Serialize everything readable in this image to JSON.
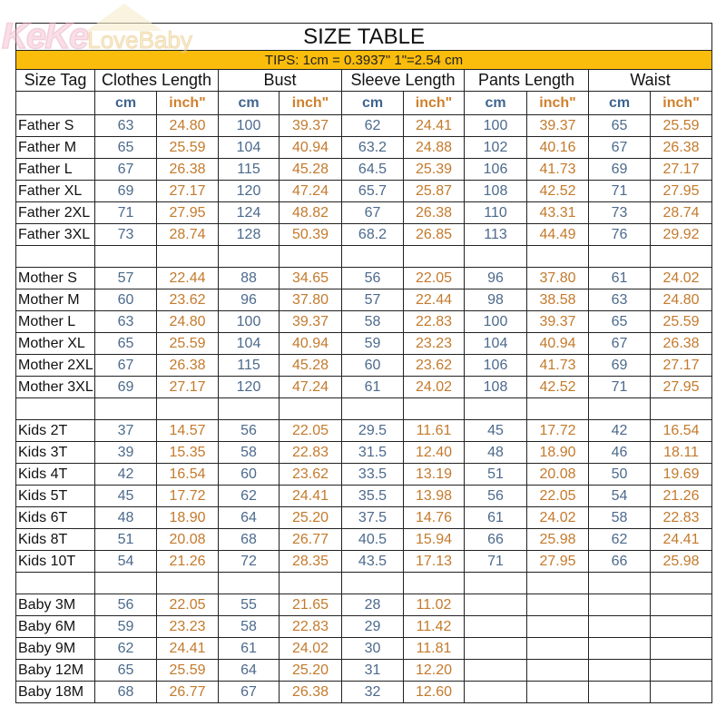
{
  "logo": {
    "brand": "KeKe",
    "sub": "LoveBaby"
  },
  "title": "SIZE TABLE",
  "tips": "TIPS: 1cm = 0.3937\"   1\"=2.54 cm",
  "headers": [
    "Size Tag",
    "Clothes Length",
    "Bust",
    "Sleeve Length",
    "Pants Length",
    "Waist"
  ],
  "units": {
    "cm": "cm",
    "inch": "inch\""
  },
  "colors": {
    "tips_bg": "#fbbd0c",
    "cm": "#4c6a8c",
    "inch": "#c47a2c"
  },
  "groups": [
    {
      "rows": [
        [
          "Father S",
          "63",
          "24.80",
          "100",
          "39.37",
          "62",
          "24.41",
          "100",
          "39.37",
          "65",
          "25.59"
        ],
        [
          "Father M",
          "65",
          "25.59",
          "104",
          "40.94",
          "63.2",
          "24.88",
          "102",
          "40.16",
          "67",
          "26.38"
        ],
        [
          "Father L",
          "67",
          "26.38",
          "115",
          "45.28",
          "64.5",
          "25.39",
          "106",
          "41.73",
          "69",
          "27.17"
        ],
        [
          "Father XL",
          "69",
          "27.17",
          "120",
          "47.24",
          "65.7",
          "25.87",
          "108",
          "42.52",
          "71",
          "27.95"
        ],
        [
          "Father 2XL",
          "71",
          "27.95",
          "124",
          "48.82",
          "67",
          "26.38",
          "110",
          "43.31",
          "73",
          "28.74"
        ],
        [
          "Father 3XL",
          "73",
          "28.74",
          "128",
          "50.39",
          "68.2",
          "26.85",
          "113",
          "44.49",
          "76",
          "29.92"
        ]
      ]
    },
    {
      "rows": [
        [
          "Mother S",
          "57",
          "22.44",
          "88",
          "34.65",
          "56",
          "22.05",
          "96",
          "37.80",
          "61",
          "24.02"
        ],
        [
          "Mother M",
          "60",
          "23.62",
          "96",
          "37.80",
          "57",
          "22.44",
          "98",
          "38.58",
          "63",
          "24.80"
        ],
        [
          "Mother L",
          "63",
          "24.80",
          "100",
          "39.37",
          "58",
          "22.83",
          "100",
          "39.37",
          "65",
          "25.59"
        ],
        [
          "Mother XL",
          "65",
          "25.59",
          "104",
          "40.94",
          "59",
          "23.23",
          "104",
          "40.94",
          "67",
          "26.38"
        ],
        [
          "Mother 2XL",
          "67",
          "26.38",
          "115",
          "45.28",
          "60",
          "23.62",
          "106",
          "41.73",
          "69",
          "27.17"
        ],
        [
          "Mother 3XL",
          "69",
          "27.17",
          "120",
          "47.24",
          "61",
          "24.02",
          "108",
          "42.52",
          "71",
          "27.95"
        ]
      ]
    },
    {
      "rows": [
        [
          "Kids 2T",
          "37",
          "14.57",
          "56",
          "22.05",
          "29.5",
          "11.61",
          "45",
          "17.72",
          "42",
          "16.54"
        ],
        [
          "Kids 3T",
          "39",
          "15.35",
          "58",
          "22.83",
          "31.5",
          "12.40",
          "48",
          "18.90",
          "46",
          "18.11"
        ],
        [
          "Kids 4T",
          "42",
          "16.54",
          "60",
          "23.62",
          "33.5",
          "13.19",
          "51",
          "20.08",
          "50",
          "19.69"
        ],
        [
          "Kids 5T",
          "45",
          "17.72",
          "62",
          "24.41",
          "35.5",
          "13.98",
          "56",
          "22.05",
          "54",
          "21.26"
        ],
        [
          "Kids 6T",
          "48",
          "18.90",
          "64",
          "25.20",
          "37.5",
          "14.76",
          "61",
          "24.02",
          "58",
          "22.83"
        ],
        [
          "Kids 8T",
          "51",
          "20.08",
          "68",
          "26.77",
          "40.5",
          "15.94",
          "66",
          "25.98",
          "62",
          "24.41"
        ],
        [
          "Kids 10T",
          "54",
          "21.26",
          "72",
          "28.35",
          "43.5",
          "17.13",
          "71",
          "27.95",
          "66",
          "25.98"
        ]
      ]
    },
    {
      "rows": [
        [
          "Baby 3M",
          "56",
          "22.05",
          "55",
          "21.65",
          "28",
          "11.02",
          "",
          "",
          "",
          ""
        ],
        [
          "Baby 6M",
          "59",
          "23.23",
          "58",
          "22.83",
          "29",
          "11.42",
          "",
          "",
          "",
          ""
        ],
        [
          "Baby 9M",
          "62",
          "24.41",
          "61",
          "24.02",
          "30",
          "11.81",
          "",
          "",
          "",
          ""
        ],
        [
          "Baby 12M",
          "65",
          "25.59",
          "64",
          "25.20",
          "31",
          "12.20",
          "",
          "",
          "",
          ""
        ],
        [
          "Baby 18M",
          "68",
          "26.77",
          "67",
          "26.38",
          "32",
          "12.60",
          "",
          "",
          "",
          ""
        ]
      ]
    }
  ]
}
